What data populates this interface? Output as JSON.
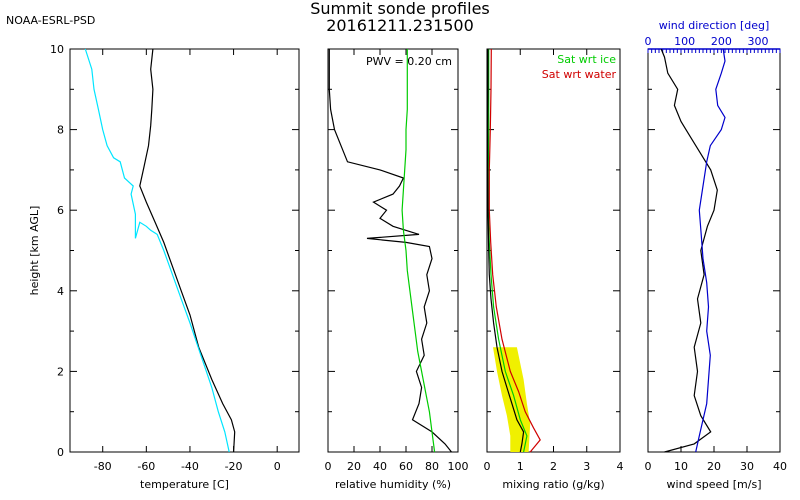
{
  "header": {
    "org": "NOAA-ESRL-PSD",
    "title_line1": "Summit sonde profiles",
    "title_line2": "20161211.231500"
  },
  "colors": {
    "black": "#000000",
    "cyan": "#00e5ff",
    "green": "#00cc00",
    "red": "#d00000",
    "yellow": "#f0f000",
    "blue": "#0000cc"
  },
  "chart_data": [
    {
      "type": "line",
      "id": "temperature",
      "xlabel": "temperature [C]",
      "ylabel": "height [km AGL]",
      "xlim": [
        -95,
        10
      ],
      "ylim": [
        0,
        10
      ],
      "xticks": [
        -80,
        -60,
        -40,
        -20,
        0
      ],
      "yticks": [
        0,
        2,
        4,
        6,
        8,
        10
      ],
      "grid": false,
      "series": [
        {
          "color": "#000000",
          "points": [
            [
              -20,
              0
            ],
            [
              -19.5,
              0.5
            ],
            [
              -21,
              0.8
            ],
            [
              -25,
              1.2
            ],
            [
              -30,
              1.8
            ],
            [
              -36,
              2.6
            ],
            [
              -40,
              3.4
            ],
            [
              -44,
              4.0
            ],
            [
              -48,
              4.6
            ],
            [
              -52,
              5.2
            ],
            [
              -56,
              5.7
            ],
            [
              -60,
              6.2
            ],
            [
              -63,
              6.6
            ],
            [
              -61,
              7.1
            ],
            [
              -59,
              7.6
            ],
            [
              -58,
              8.1
            ],
            [
              -57.5,
              8.5
            ],
            [
              -57,
              9.0
            ],
            [
              -58,
              9.5
            ],
            [
              -57,
              10
            ]
          ]
        },
        {
          "color": "#00e5ff",
          "points": [
            [
              -22,
              0
            ],
            [
              -24,
              0.5
            ],
            [
              -27,
              1.0
            ],
            [
              -30,
              1.6
            ],
            [
              -35,
              2.4
            ],
            [
              -40,
              3.2
            ],
            [
              -44,
              3.8
            ],
            [
              -48,
              4.4
            ],
            [
              -52,
              5.0
            ],
            [
              -55,
              5.4
            ],
            [
              -58,
              5.5
            ],
            [
              -60,
              5.6
            ],
            [
              -63,
              5.7
            ],
            [
              -65,
              5.3
            ],
            [
              -65,
              5.9
            ],
            [
              -67,
              6.4
            ],
            [
              -66,
              6.6
            ],
            [
              -70,
              6.8
            ],
            [
              -72,
              7.2
            ],
            [
              -75,
              7.3
            ],
            [
              -78,
              7.6
            ],
            [
              -80,
              8.0
            ],
            [
              -82,
              8.5
            ],
            [
              -84,
              9.0
            ],
            [
              -85,
              9.5
            ],
            [
              -88,
              10
            ]
          ]
        }
      ]
    },
    {
      "type": "line",
      "id": "relative_humidity",
      "xlabel": "relative humidity (%)",
      "xlim": [
        0,
        100
      ],
      "ylim": [
        0,
        10
      ],
      "xticks": [
        0,
        20,
        40,
        60,
        80,
        100
      ],
      "annotation": "PWV = 0.20 cm",
      "series": [
        {
          "color": "#000000",
          "points": [
            [
              95,
              0
            ],
            [
              90,
              0.2
            ],
            [
              80,
              0.5
            ],
            [
              65,
              0.8
            ],
            [
              70,
              1.2
            ],
            [
              72,
              1.6
            ],
            [
              68,
              2.0
            ],
            [
              74,
              2.4
            ],
            [
              72,
              2.8
            ],
            [
              76,
              3.2
            ],
            [
              74,
              3.6
            ],
            [
              78,
              4.0
            ],
            [
              76,
              4.4
            ],
            [
              80,
              4.8
            ],
            [
              78,
              5.1
            ],
            [
              60,
              5.2
            ],
            [
              30,
              5.3
            ],
            [
              70,
              5.4
            ],
            [
              50,
              5.6
            ],
            [
              40,
              5.8
            ],
            [
              45,
              6.0
            ],
            [
              35,
              6.2
            ],
            [
              50,
              6.4
            ],
            [
              55,
              6.6
            ],
            [
              58,
              6.8
            ],
            [
              40,
              7.0
            ],
            [
              15,
              7.2
            ],
            [
              10,
              7.6
            ],
            [
              5,
              8.0
            ],
            [
              2,
              8.5
            ],
            [
              1,
              9.0
            ],
            [
              1,
              10
            ]
          ]
        },
        {
          "color": "#00cc00",
          "points": [
            [
              82,
              0
            ],
            [
              80,
              0.5
            ],
            [
              78,
              1.0
            ],
            [
              75,
              1.5
            ],
            [
              72,
              2.0
            ],
            [
              69,
              2.5
            ],
            [
              67,
              3.0
            ],
            [
              65,
              3.5
            ],
            [
              63,
              4.0
            ],
            [
              61,
              4.5
            ],
            [
              60,
              5.0
            ],
            [
              58,
              5.5
            ],
            [
              57,
              6.0
            ],
            [
              58,
              6.5
            ],
            [
              59,
              7.0
            ],
            [
              60,
              7.5
            ],
            [
              60,
              8.0
            ],
            [
              61,
              8.5
            ],
            [
              61,
              9.0
            ],
            [
              61,
              9.5
            ],
            [
              61,
              10
            ]
          ]
        }
      ]
    },
    {
      "type": "line",
      "id": "mixing_ratio",
      "xlabel": "mixing ratio (g/kg)",
      "xlim": [
        0,
        4
      ],
      "ylim": [
        0,
        10
      ],
      "xticks": [
        0,
        1,
        2,
        3,
        4
      ],
      "legend": [
        "Sat wrt ice",
        "Sat wrt water"
      ],
      "legend_position": "top-right",
      "series": [
        {
          "name": "Sat wrt ice",
          "color": "#00cc00",
          "points": [
            [
              1.1,
              0
            ],
            [
              1.2,
              0.4
            ],
            [
              1.0,
              0.8
            ],
            [
              0.8,
              1.4
            ],
            [
              0.55,
              2.0
            ],
            [
              0.35,
              2.8
            ],
            [
              0.2,
              3.6
            ],
            [
              0.12,
              4.4
            ],
            [
              0.07,
              5.2
            ],
            [
              0.04,
              6.0
            ],
            [
              0.04,
              7.0
            ],
            [
              0.05,
              8.0
            ],
            [
              0.05,
              9.0
            ],
            [
              0.05,
              10
            ]
          ]
        },
        {
          "name": "Sat wrt water",
          "color": "#d00000",
          "points": [
            [
              1.3,
              0
            ],
            [
              1.6,
              0.3
            ],
            [
              1.4,
              0.6
            ],
            [
              1.15,
              1.0
            ],
            [
              0.95,
              1.5
            ],
            [
              0.7,
              2.0
            ],
            [
              0.45,
              2.8
            ],
            [
              0.28,
              3.6
            ],
            [
              0.17,
              4.4
            ],
            [
              0.11,
              5.2
            ],
            [
              0.07,
              6.0
            ],
            [
              0.07,
              7.0
            ],
            [
              0.1,
              8.0
            ],
            [
              0.12,
              9.0
            ],
            [
              0.13,
              10
            ]
          ]
        },
        {
          "color": "#000000",
          "points": [
            [
              1.0,
              0
            ],
            [
              1.05,
              0.2
            ],
            [
              1.1,
              0.5
            ],
            [
              0.9,
              0.8
            ],
            [
              0.75,
              1.2
            ],
            [
              0.6,
              1.6
            ],
            [
              0.45,
              2.0
            ],
            [
              0.3,
              2.6
            ],
            [
              0.2,
              3.2
            ],
            [
              0.12,
              3.8
            ],
            [
              0.07,
              4.4
            ],
            [
              0.05,
              5.0
            ],
            [
              0.03,
              6.0
            ],
            [
              0.02,
              7.0
            ],
            [
              0.02,
              8.0
            ],
            [
              0.03,
              9.0
            ],
            [
              0.03,
              10
            ]
          ]
        }
      ]
    },
    {
      "type": "line",
      "id": "wind",
      "xlabel": "wind speed [m/s]",
      "xlabel_top": "wind direction [deg]",
      "xlim": [
        0,
        40
      ],
      "xlim_top": [
        0,
        360
      ],
      "ylim": [
        0,
        10
      ],
      "xticks": [
        0,
        10,
        20,
        30,
        40
      ],
      "xticks_top": [
        0,
        100,
        200,
        300
      ],
      "series": [
        {
          "color": "#000000",
          "points": [
            [
              5,
              0
            ],
            [
              14,
              0.2
            ],
            [
              19,
              0.5
            ],
            [
              16,
              0.9
            ],
            [
              14,
              1.4
            ],
            [
              15,
              2.0
            ],
            [
              14,
              2.6
            ],
            [
              16,
              3.2
            ],
            [
              15,
              3.8
            ],
            [
              17,
              4.4
            ],
            [
              16,
              5.0
            ],
            [
              18,
              5.6
            ],
            [
              20,
              6.0
            ],
            [
              21,
              6.5
            ],
            [
              19,
              7.0
            ],
            [
              16,
              7.4
            ],
            [
              13,
              7.8
            ],
            [
              10,
              8.2
            ],
            [
              8,
              8.6
            ],
            [
              9,
              9.0
            ],
            [
              6,
              9.4
            ],
            [
              5,
              9.8
            ],
            [
              4,
              10
            ]
          ]
        },
        {
          "color": "#0000cc",
          "points": [
            [
              130,
              0
            ],
            [
              140,
              0.4
            ],
            [
              150,
              0.8
            ],
            [
              160,
              1.2
            ],
            [
              165,
              1.8
            ],
            [
              170,
              2.4
            ],
            [
              160,
              3.0
            ],
            [
              165,
              3.6
            ],
            [
              160,
              4.2
            ],
            [
              150,
              4.8
            ],
            [
              145,
              5.4
            ],
            [
              140,
              6.0
            ],
            [
              150,
              6.6
            ],
            [
              160,
              7.2
            ],
            [
              170,
              7.6
            ],
            [
              200,
              8.0
            ],
            [
              210,
              8.3
            ],
            [
              190,
              8.6
            ],
            [
              185,
              9.0
            ],
            [
              200,
              9.4
            ],
            [
              210,
              9.7
            ],
            [
              205,
              10
            ]
          ]
        }
      ]
    }
  ]
}
